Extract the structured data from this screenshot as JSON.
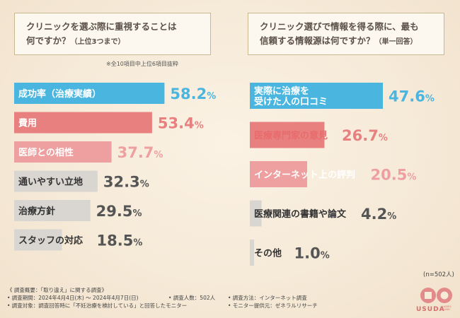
{
  "left": {
    "question_line1": "クリニックを選ぶ際に重視することは",
    "question_line2": "何ですか？",
    "question_note": "（上位3つまで）",
    "subnote": "※全10項目中上位6項目抜粋"
  },
  "right": {
    "question_line1": "クリニック選びで情報を得る際に、最も",
    "question_line2": "信頼する情報源は何ですか？",
    "question_note": "（単一回答）",
    "n_label": "(n=502人)"
  },
  "chart_data": [
    {
      "type": "bar",
      "orientation": "horizontal",
      "unit": "%",
      "categories": [
        "成功率（治療実績）",
        "費用",
        "医師との相性",
        "通いやすい立地",
        "治療方針",
        "スタッフの対応"
      ],
      "values": [
        58.2,
        53.4,
        37.7,
        32.3,
        29.5,
        18.5
      ],
      "value_labels": [
        "58.2%",
        "53.4%",
        "37.7%",
        "32.3%",
        "29.5%",
        "18.5%"
      ],
      "colors": [
        "#4ab6df",
        "#e88080",
        "#eea0a0",
        "#d9d6d2",
        "#d9d6d2",
        "#d9d6d2"
      ],
      "label_colors": [
        "#ffffff",
        "#ffffff",
        "#ffffff",
        "#333333",
        "#333333",
        "#333333"
      ],
      "value_colors": [
        "#4ab6df",
        "#e88080",
        "#eea0a0",
        "#555555",
        "#555555",
        "#555555"
      ]
    },
    {
      "type": "bar",
      "orientation": "horizontal",
      "unit": "%",
      "categories": [
        [
          "実際に治療を",
          "受けた人の口コミ"
        ],
        "医療専門家の意見",
        "インターネット上の評判",
        "医療関連の書籍や論文",
        "その他"
      ],
      "values": [
        47.6,
        26.7,
        20.5,
        4.2,
        1.0
      ],
      "value_labels": [
        "47.6%",
        "26.7%",
        "20.5%",
        "4.2%",
        "1.0%"
      ],
      "colors": [
        "#4ab6df",
        "#e88080",
        "#eea0a0",
        "#d9d6d2",
        "#d9d6d2"
      ],
      "label_colors": [
        "#ffffff",
        "#e86c6c",
        "#ffffff",
        "#333333",
        "#333333"
      ],
      "value_colors": [
        "#4ab6df",
        "#e88080",
        "#eea0a0",
        "#555555",
        "#555555"
      ]
    }
  ],
  "footer": {
    "line1": "《 調査概要：「取り違え」に関する調査》",
    "period": "• 調査期間：2024年4月4日(木) ～ 2024年4月7日(日)",
    "people": "• 調査人数：502人",
    "method": "• 調査方法：インターネット調査",
    "target": "• 調査対象：調査回答時に「不妊治療を検討している」と回答したモニター",
    "provider": "• モニター提供元：ゼネラルリサーチ"
  },
  "logo": {
    "text": "USUDA",
    "sub1": "LADIES",
    "sub2": "CLINIC"
  }
}
